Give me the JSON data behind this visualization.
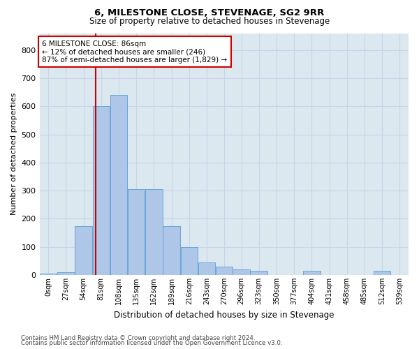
{
  "title": "6, MILESTONE CLOSE, STEVENAGE, SG2 9RR",
  "subtitle": "Size of property relative to detached houses in Stevenage",
  "xlabel": "Distribution of detached houses by size in Stevenage",
  "ylabel": "Number of detached properties",
  "bin_labels": [
    "0sqm",
    "27sqm",
    "54sqm",
    "81sqm",
    "108sqm",
    "135sqm",
    "162sqm",
    "189sqm",
    "216sqm",
    "243sqm",
    "270sqm",
    "296sqm",
    "323sqm",
    "350sqm",
    "377sqm",
    "404sqm",
    "431sqm",
    "458sqm",
    "485sqm",
    "512sqm",
    "539sqm"
  ],
  "bin_edges": [
    0,
    27,
    54,
    81,
    108,
    135,
    162,
    189,
    216,
    243,
    270,
    296,
    323,
    350,
    377,
    404,
    431,
    458,
    485,
    512,
    539,
    566
  ],
  "bar_heights": [
    5,
    10,
    175,
    600,
    640,
    305,
    305,
    175,
    100,
    45,
    30,
    20,
    15,
    0,
    0,
    15,
    0,
    0,
    0,
    15,
    0
  ],
  "bar_color": "#aec6e8",
  "bar_edge_color": "#5a9fd4",
  "property_sqm": 86,
  "property_line_color": "#cc0000",
  "annotation_text": "6 MILESTONE CLOSE: 86sqm\n← 12% of detached houses are smaller (246)\n87% of semi-detached houses are larger (1,829) →",
  "annotation_box_color": "#ffffff",
  "annotation_box_edge": "#cc0000",
  "ylim": [
    0,
    860
  ],
  "yticks": [
    0,
    100,
    200,
    300,
    400,
    500,
    600,
    700,
    800
  ],
  "grid_color": "#c8d4e8",
  "background_color": "#dce8f0",
  "footer_line1": "Contains HM Land Registry data © Crown copyright and database right 2024.",
  "footer_line2": "Contains public sector information licensed under the Open Government Licence v3.0."
}
